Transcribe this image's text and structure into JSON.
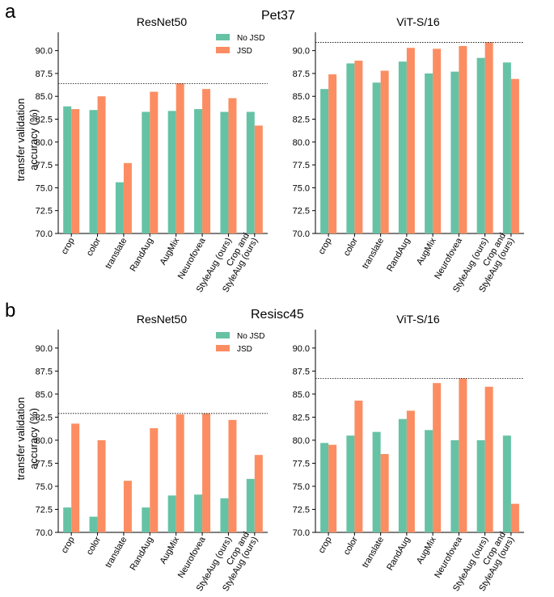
{
  "panels": [
    {
      "letter": "a",
      "suptitle": "Pet37"
    },
    {
      "letter": "b",
      "suptitle": "Resisc45"
    }
  ],
  "ylabel_line1": "transfer validation",
  "ylabel_line2": "accuracy (%)",
  "colors": {
    "no_jsd": "#66c2a5",
    "jsd": "#fc8d62"
  },
  "chart_data": [
    {
      "type": "bar",
      "title": "ResNet50",
      "categories": [
        "crop",
        "color",
        "translate",
        "RandAug",
        "AugMix",
        "Neurofovea",
        "StyleAug (ours)",
        "Crop and StyleAug (ours)"
      ],
      "ylim": [
        70,
        92
      ],
      "yticks": [
        70.0,
        72.5,
        75.0,
        77.5,
        80.0,
        82.5,
        85.0,
        87.5,
        90.0
      ],
      "reference_line": 86.4,
      "legend": true,
      "series": [
        {
          "name": "No JSD",
          "values": [
            83.9,
            83.5,
            75.6,
            83.3,
            83.4,
            83.6,
            83.3,
            83.3
          ]
        },
        {
          "name": "JSD",
          "values": [
            83.6,
            85.0,
            77.7,
            85.5,
            86.4,
            85.8,
            84.8,
            81.8
          ]
        }
      ]
    },
    {
      "type": "bar",
      "title": "ViT-S/16",
      "categories": [
        "crop",
        "color",
        "translate",
        "RandAug",
        "AugMix",
        "Neurofovea",
        "StyleAug (ours)",
        "Crop and StyleAug (ours)"
      ],
      "ylim": [
        70,
        92
      ],
      "yticks": [
        70.0,
        72.5,
        75.0,
        77.5,
        80.0,
        82.5,
        85.0,
        87.5,
        90.0
      ],
      "reference_line": 90.9,
      "legend": false,
      "series": [
        {
          "name": "No JSD",
          "values": [
            85.8,
            88.6,
            86.5,
            88.8,
            87.5,
            87.7,
            89.2,
            88.7
          ]
        },
        {
          "name": "JSD",
          "values": [
            87.4,
            88.9,
            87.8,
            90.3,
            90.2,
            90.5,
            90.9,
            86.9
          ]
        }
      ]
    },
    {
      "type": "bar",
      "title": "ResNet50",
      "categories": [
        "crop",
        "color",
        "translate",
        "RandAug",
        "AugMix",
        "Neurofovea",
        "StyleAug (ours)",
        "Crop and StyleAug (ours)"
      ],
      "ylim": [
        70,
        92
      ],
      "yticks": [
        70.0,
        72.5,
        75.0,
        77.5,
        80.0,
        82.5,
        85.0,
        87.5,
        90.0
      ],
      "reference_line": 82.9,
      "legend": true,
      "series": [
        {
          "name": "No JSD",
          "values": [
            72.7,
            71.7,
            70.0,
            72.7,
            74.0,
            74.1,
            73.7,
            75.8
          ]
        },
        {
          "name": "JSD",
          "values": [
            81.8,
            80.0,
            75.6,
            81.3,
            82.8,
            82.9,
            82.2,
            78.4
          ]
        }
      ]
    },
    {
      "type": "bar",
      "title": "ViT-S/16",
      "categories": [
        "crop",
        "color",
        "translate",
        "RandAug",
        "AugMix",
        "Neurofovea",
        "StyleAug (ours)",
        "Crop and StyleAug (ours)"
      ],
      "ylim": [
        70,
        92
      ],
      "yticks": [
        70.0,
        72.5,
        75.0,
        77.5,
        80.0,
        82.5,
        85.0,
        87.5,
        90.0
      ],
      "reference_line": 86.7,
      "legend": false,
      "series": [
        {
          "name": "No JSD",
          "values": [
            79.7,
            80.5,
            80.9,
            82.3,
            81.1,
            80.0,
            80.0,
            80.5
          ]
        },
        {
          "name": "JSD",
          "values": [
            79.5,
            84.3,
            78.5,
            83.2,
            86.2,
            86.7,
            85.8,
            73.1
          ]
        }
      ]
    }
  ]
}
